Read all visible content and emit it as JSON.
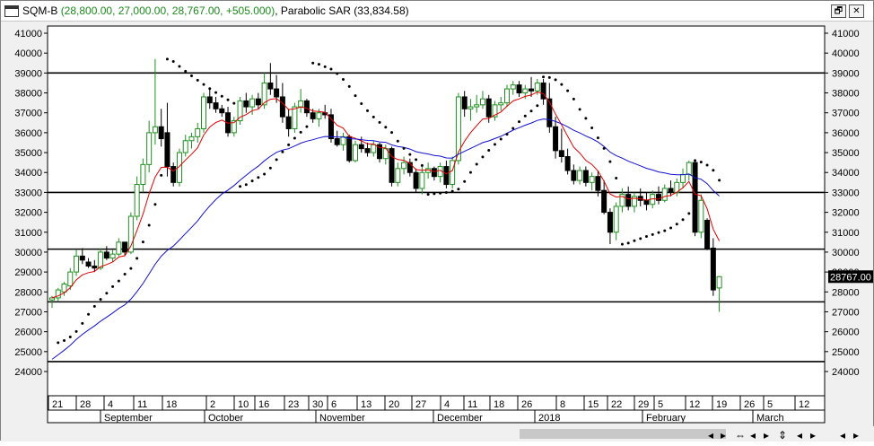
{
  "window": {
    "symbol": "SQM-B",
    "prices": "(28,800.00, 27,000.00, 28,767.00, +505.000)",
    "indicator": "Parabolic SAR (33,834.58)",
    "restore_label": "🗗",
    "close_label": "✕"
  },
  "chart_data": {
    "type": "candlestick",
    "last_price_label": "28767.00",
    "ylim": [
      23000,
      41500
    ],
    "y_ticks": [
      24000,
      25000,
      26000,
      27000,
      28000,
      29000,
      30000,
      31000,
      32000,
      33000,
      34000,
      35000,
      36000,
      37000,
      38000,
      39000,
      40000,
      41000
    ],
    "horizontal_lines": [
      39000,
      33000,
      30150,
      27500,
      24500
    ],
    "x_day_labels": [
      "21",
      "28",
      "4",
      "11",
      "18",
      "2",
      "10",
      "16",
      "23",
      "30",
      "6",
      "13",
      "20",
      "27",
      "4",
      "11",
      "18",
      "26",
      "8",
      "15",
      "22",
      "29",
      "5",
      "12",
      "19",
      "26",
      "5",
      "12"
    ],
    "x_month_labels": [
      "September",
      "October",
      "November",
      "December",
      "2018",
      "February",
      "March"
    ],
    "candles": [
      {
        "o": 27600,
        "h": 27800,
        "l": 27200,
        "c": 27700
      },
      {
        "o": 27700,
        "h": 28200,
        "l": 27500,
        "c": 28100
      },
      {
        "o": 28000,
        "h": 28500,
        "l": 27800,
        "c": 28400
      },
      {
        "o": 28300,
        "h": 29200,
        "l": 28100,
        "c": 29000
      },
      {
        "o": 29000,
        "h": 30100,
        "l": 28800,
        "c": 29800
      },
      {
        "o": 29800,
        "h": 30200,
        "l": 29400,
        "c": 29600
      },
      {
        "o": 29500,
        "h": 29700,
        "l": 29200,
        "c": 29300
      },
      {
        "o": 29300,
        "h": 29600,
        "l": 29000,
        "c": 29200
      },
      {
        "o": 29200,
        "h": 30200,
        "l": 29100,
        "c": 30000
      },
      {
        "o": 30000,
        "h": 30300,
        "l": 29600,
        "c": 29700
      },
      {
        "o": 29700,
        "h": 30100,
        "l": 29500,
        "c": 29900
      },
      {
        "o": 29900,
        "h": 30700,
        "l": 29800,
        "c": 30500
      },
      {
        "o": 30500,
        "h": 30400,
        "l": 29800,
        "c": 30000
      },
      {
        "o": 30000,
        "h": 32000,
        "l": 29900,
        "c": 31800
      },
      {
        "o": 31800,
        "h": 33800,
        "l": 31600,
        "c": 33400
      },
      {
        "o": 33400,
        "h": 34700,
        "l": 33000,
        "c": 34400
      },
      {
        "o": 34400,
        "h": 36600,
        "l": 34000,
        "c": 36000
      },
      {
        "o": 36000,
        "h": 39700,
        "l": 35400,
        "c": 36300
      },
      {
        "o": 36300,
        "h": 37200,
        "l": 35300,
        "c": 35700
      },
      {
        "o": 36000,
        "h": 37500,
        "l": 33800,
        "c": 34300
      },
      {
        "o": 34300,
        "h": 34500,
        "l": 33300,
        "c": 33500
      },
      {
        "o": 33500,
        "h": 35200,
        "l": 33300,
        "c": 35000
      },
      {
        "o": 35000,
        "h": 35900,
        "l": 34800,
        "c": 35600
      },
      {
        "o": 35600,
        "h": 36000,
        "l": 35200,
        "c": 35800
      },
      {
        "o": 35800,
        "h": 36500,
        "l": 35500,
        "c": 36200
      },
      {
        "o": 36200,
        "h": 38000,
        "l": 36000,
        "c": 37800
      },
      {
        "o": 37800,
        "h": 38200,
        "l": 37200,
        "c": 37500
      },
      {
        "o": 37500,
        "h": 37800,
        "l": 37000,
        "c": 37200
      },
      {
        "o": 37200,
        "h": 37400,
        "l": 36800,
        "c": 37000
      },
      {
        "o": 37000,
        "h": 37300,
        "l": 35800,
        "c": 36000
      },
      {
        "o": 36000,
        "h": 36800,
        "l": 35800,
        "c": 36600
      },
      {
        "o": 36600,
        "h": 37800,
        "l": 36400,
        "c": 37600
      },
      {
        "o": 37600,
        "h": 38000,
        "l": 37000,
        "c": 37300
      },
      {
        "o": 37300,
        "h": 37900,
        "l": 36900,
        "c": 37700
      },
      {
        "o": 37700,
        "h": 38000,
        "l": 37200,
        "c": 37400
      },
      {
        "o": 37400,
        "h": 39000,
        "l": 37200,
        "c": 38500
      },
      {
        "o": 38500,
        "h": 39500,
        "l": 37900,
        "c": 38200
      },
      {
        "o": 38200,
        "h": 38900,
        "l": 37500,
        "c": 37800
      },
      {
        "o": 37800,
        "h": 38500,
        "l": 36500,
        "c": 36800
      },
      {
        "o": 36800,
        "h": 37200,
        "l": 35800,
        "c": 36200
      },
      {
        "o": 36200,
        "h": 37500,
        "l": 36000,
        "c": 37300
      },
      {
        "o": 37300,
        "h": 38200,
        "l": 37000,
        "c": 37600
      },
      {
        "o": 37600,
        "h": 37700,
        "l": 36800,
        "c": 37000
      },
      {
        "o": 37000,
        "h": 37200,
        "l": 36500,
        "c": 36700
      },
      {
        "o": 36700,
        "h": 37200,
        "l": 36300,
        "c": 37000
      },
      {
        "o": 37000,
        "h": 37400,
        "l": 36700,
        "c": 36900
      },
      {
        "o": 36900,
        "h": 37200,
        "l": 35500,
        "c": 35700
      },
      {
        "o": 35700,
        "h": 36100,
        "l": 35300,
        "c": 35400
      },
      {
        "o": 35400,
        "h": 36000,
        "l": 35100,
        "c": 35800
      },
      {
        "o": 35800,
        "h": 35900,
        "l": 34500,
        "c": 34600
      },
      {
        "o": 34600,
        "h": 35600,
        "l": 34500,
        "c": 35400
      },
      {
        "o": 35400,
        "h": 35800,
        "l": 35000,
        "c": 35200
      },
      {
        "o": 35200,
        "h": 35500,
        "l": 34800,
        "c": 35000
      },
      {
        "o": 35000,
        "h": 35600,
        "l": 34800,
        "c": 35400
      },
      {
        "o": 35400,
        "h": 35500,
        "l": 34500,
        "c": 34700
      },
      {
        "o": 34700,
        "h": 35400,
        "l": 34400,
        "c": 35200
      },
      {
        "o": 35200,
        "h": 35300,
        "l": 33300,
        "c": 33500
      },
      {
        "o": 33500,
        "h": 34500,
        "l": 33300,
        "c": 34200
      },
      {
        "o": 34200,
        "h": 34800,
        "l": 33900,
        "c": 34500
      },
      {
        "o": 34500,
        "h": 34700,
        "l": 33800,
        "c": 34000
      },
      {
        "o": 34000,
        "h": 34200,
        "l": 33000,
        "c": 33200
      },
      {
        "o": 33200,
        "h": 34300,
        "l": 32900,
        "c": 34000
      },
      {
        "o": 34000,
        "h": 34500,
        "l": 33700,
        "c": 34200
      },
      {
        "o": 34200,
        "h": 34300,
        "l": 33600,
        "c": 33800
      },
      {
        "o": 33800,
        "h": 34500,
        "l": 33500,
        "c": 34300
      },
      {
        "o": 34300,
        "h": 34600,
        "l": 33200,
        "c": 33400
      },
      {
        "o": 33400,
        "h": 34800,
        "l": 33200,
        "c": 34600
      },
      {
        "o": 34600,
        "h": 38000,
        "l": 34400,
        "c": 37800
      },
      {
        "o": 37800,
        "h": 38100,
        "l": 36800,
        "c": 37200
      },
      {
        "o": 37200,
        "h": 37700,
        "l": 36600,
        "c": 37300
      },
      {
        "o": 37300,
        "h": 37900,
        "l": 37000,
        "c": 37400
      },
      {
        "o": 37400,
        "h": 38100,
        "l": 37200,
        "c": 37700
      },
      {
        "o": 37700,
        "h": 37900,
        "l": 36500,
        "c": 36800
      },
      {
        "o": 36800,
        "h": 37600,
        "l": 36600,
        "c": 37400
      },
      {
        "o": 37400,
        "h": 37800,
        "l": 37100,
        "c": 37500
      },
      {
        "o": 37500,
        "h": 38400,
        "l": 37300,
        "c": 38200
      },
      {
        "o": 38200,
        "h": 38600,
        "l": 37900,
        "c": 38400
      },
      {
        "o": 38400,
        "h": 38600,
        "l": 37800,
        "c": 38000
      },
      {
        "o": 38000,
        "h": 38400,
        "l": 37700,
        "c": 38200
      },
      {
        "o": 38200,
        "h": 38800,
        "l": 37800,
        "c": 38100
      },
      {
        "o": 38100,
        "h": 38700,
        "l": 37900,
        "c": 38500
      },
      {
        "o": 38500,
        "h": 38700,
        "l": 37400,
        "c": 37700
      },
      {
        "o": 37700,
        "h": 38500,
        "l": 36000,
        "c": 36300
      },
      {
        "o": 36300,
        "h": 36800,
        "l": 34700,
        "c": 35100
      },
      {
        "o": 35100,
        "h": 36200,
        "l": 34500,
        "c": 34800
      },
      {
        "o": 34800,
        "h": 35200,
        "l": 33900,
        "c": 34100
      },
      {
        "o": 34100,
        "h": 34400,
        "l": 33400,
        "c": 33600
      },
      {
        "o": 33600,
        "h": 34300,
        "l": 33400,
        "c": 34100
      },
      {
        "o": 34100,
        "h": 34300,
        "l": 33300,
        "c": 33500
      },
      {
        "o": 33500,
        "h": 34000,
        "l": 33100,
        "c": 33800
      },
      {
        "o": 33800,
        "h": 34100,
        "l": 32800,
        "c": 33100
      },
      {
        "o": 33100,
        "h": 33600,
        "l": 31900,
        "c": 32000
      },
      {
        "o": 32000,
        "h": 32200,
        "l": 30400,
        "c": 31000
      },
      {
        "o": 31000,
        "h": 32500,
        "l": 30600,
        "c": 32300
      },
      {
        "o": 32300,
        "h": 33200,
        "l": 32000,
        "c": 32900
      },
      {
        "o": 32900,
        "h": 33300,
        "l": 32100,
        "c": 32300
      },
      {
        "o": 32300,
        "h": 33000,
        "l": 32000,
        "c": 32800
      },
      {
        "o": 32800,
        "h": 33200,
        "l": 32300,
        "c": 32600
      },
      {
        "o": 32600,
        "h": 33000,
        "l": 32100,
        "c": 32400
      },
      {
        "o": 32400,
        "h": 33100,
        "l": 32200,
        "c": 32900
      },
      {
        "o": 32900,
        "h": 33300,
        "l": 32400,
        "c": 32600
      },
      {
        "o": 32600,
        "h": 33400,
        "l": 32500,
        "c": 33200
      },
      {
        "o": 33200,
        "h": 33600,
        "l": 32800,
        "c": 33000
      },
      {
        "o": 33000,
        "h": 33700,
        "l": 32800,
        "c": 33500
      },
      {
        "o": 33500,
        "h": 34200,
        "l": 33200,
        "c": 33900
      },
      {
        "o": 33900,
        "h": 34600,
        "l": 33600,
        "c": 34500
      },
      {
        "o": 34500,
        "h": 34600,
        "l": 30800,
        "c": 31000
      },
      {
        "o": 31000,
        "h": 32900,
        "l": 30700,
        "c": 32600
      },
      {
        "o": 31600,
        "h": 31700,
        "l": 30100,
        "c": 30200
      },
      {
        "o": 30200,
        "h": 30700,
        "l": 27800,
        "c": 28100
      },
      {
        "o": 28200,
        "h": 28800,
        "l": 27000,
        "c": 28767
      }
    ]
  }
}
